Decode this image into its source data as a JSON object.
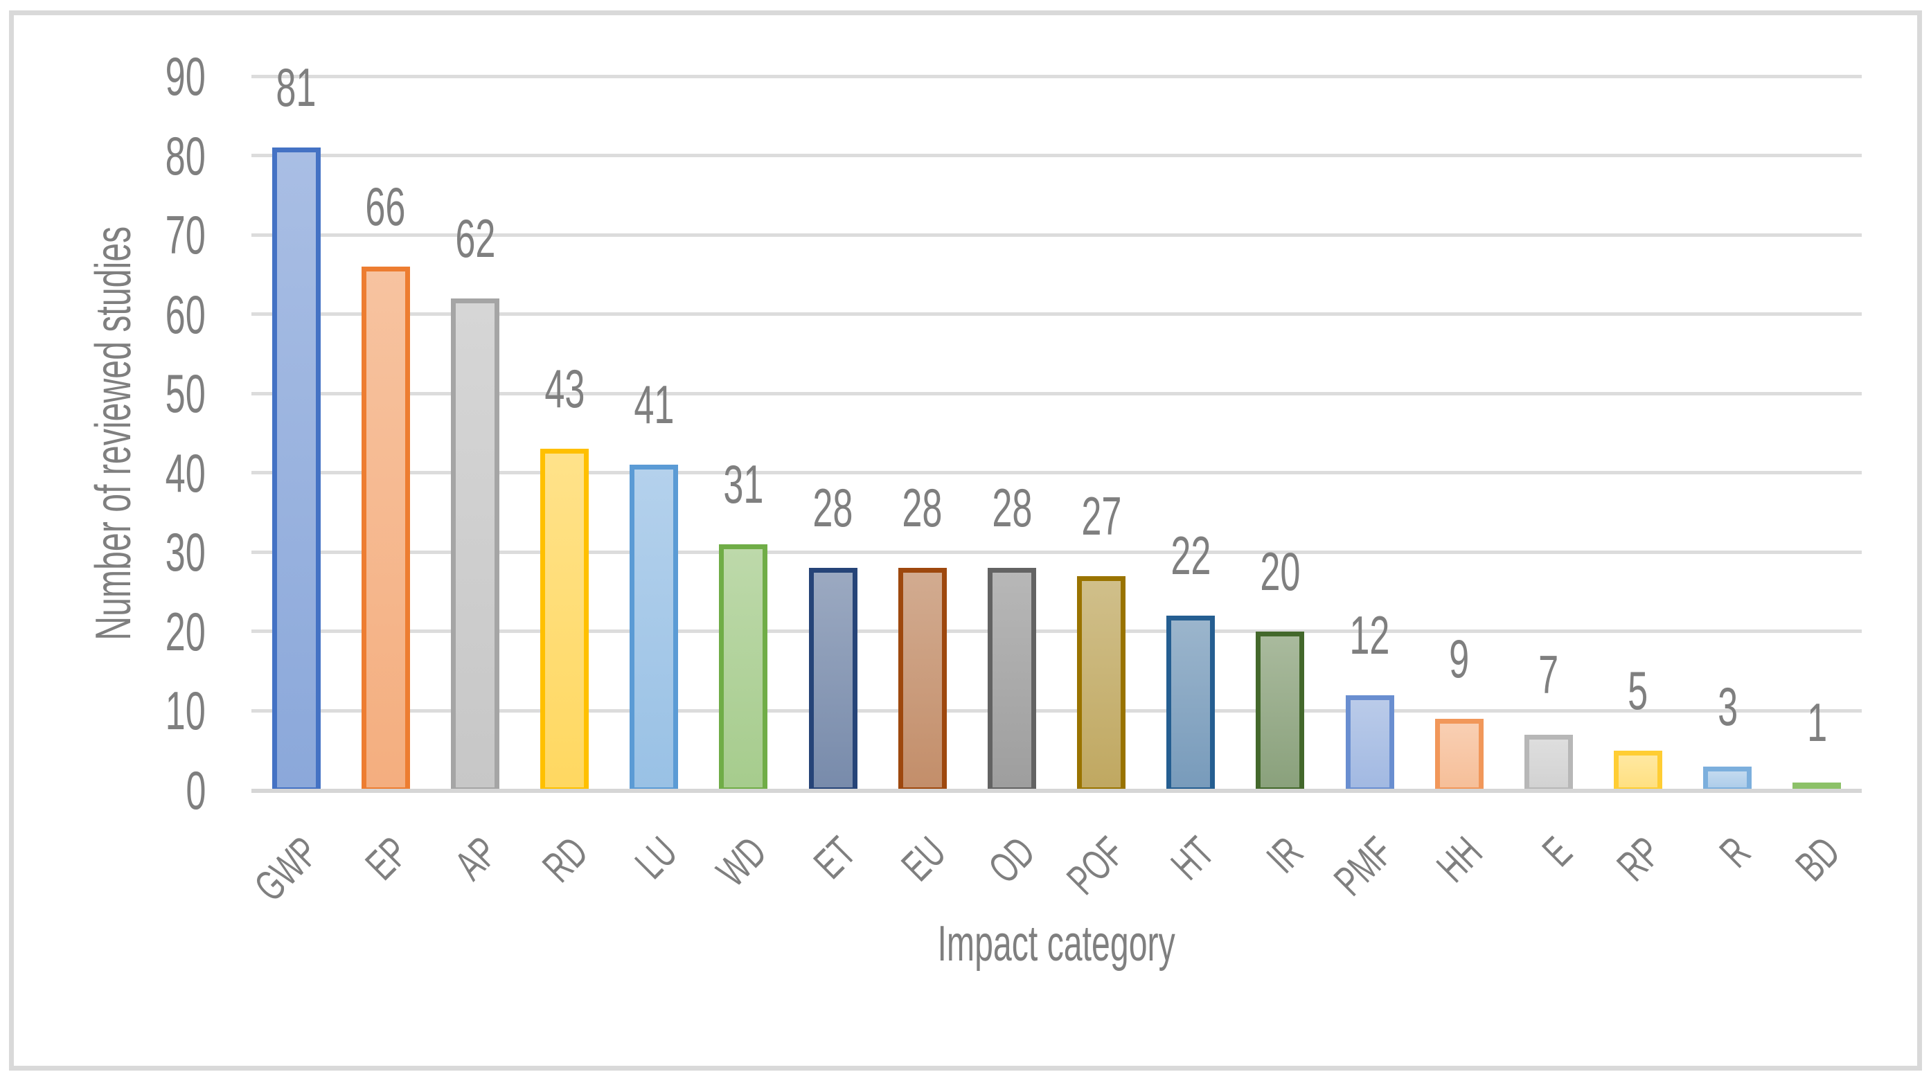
{
  "chart_data": {
    "type": "bar",
    "title": "",
    "categories": [
      "GWP",
      "EP",
      "AP",
      "RD",
      "LU",
      "WD",
      "ET",
      "EU",
      "OD",
      "POF",
      "HT",
      "IR",
      "PMF",
      "HH",
      "E",
      "RP",
      "R",
      "BD"
    ],
    "values": [
      81,
      66,
      62,
      43,
      41,
      31,
      28,
      28,
      28,
      27,
      22,
      20,
      12,
      9,
      7,
      5,
      3,
      1
    ],
    "colors": [
      "#4472C4",
      "#ED7D31",
      "#A5A5A5",
      "#FFC000",
      "#5B9BD5",
      "#70AD47",
      "#264478",
      "#9E480E",
      "#636363",
      "#997300",
      "#255E91",
      "#43682B",
      "#698ED0",
      "#F1975A",
      "#B7B7B7",
      "#FFCD33",
      "#7CAFDD",
      "#8CC168"
    ],
    "xlabel": "Impact category",
    "ylabel": "Number of reviewed studies",
    "ylim": [
      0,
      90
    ],
    "yticks": [
      0,
      10,
      20,
      30,
      40,
      50,
      60,
      70,
      80,
      90
    ],
    "grid": "horizontal",
    "legend": "none",
    "data_labels_shown": true,
    "text_color": "#7f7f7f",
    "gridline_color": "#dcdcdc",
    "axis_line_color": "#d6d6d6",
    "frame_color": "#d9d9d9"
  }
}
